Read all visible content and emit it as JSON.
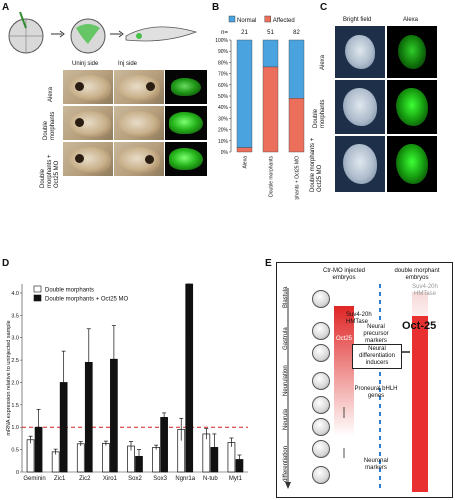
{
  "panels": {
    "a": {
      "letter": "A",
      "col_uninj": "Uninj side",
      "col_inj": "Inj side",
      "rows": [
        "Alexa",
        "Double morphants",
        "Double morphants + Oct25 MO"
      ]
    },
    "b": {
      "letter": "B"
    },
    "c": {
      "letter": "C",
      "col_bf": "Bright field",
      "col_alexa": "Alexa",
      "rows": [
        "Alexa",
        "Double morphants",
        "Double morphants + Oct25 MO"
      ]
    },
    "d": {
      "letter": "D"
    },
    "e": {
      "letter": "E",
      "col1": "Ctr-MO injected embryos",
      "col2": "double morphant embryos",
      "stages": [
        "Blastula",
        "Gastrula",
        "Neurulation",
        "Neurula",
        "differentiation"
      ],
      "suv_left": "Suv4-20h HMTase",
      "suv_right": "Suv4-20h HMTase",
      "oct25_small": "Oct25",
      "oct25_big": "Oct-25",
      "box_precursor": "Neural precursor markers",
      "box_diff": "Neural differentiation inducers",
      "proneural": "Proneural bHLH genes",
      "neuronal": "Neuronal markers"
    }
  },
  "chart_data": [
    {
      "type": "bar",
      "panel": "B",
      "categories": [
        "Alexa",
        "Double morphants",
        "Double morphants + Oct25 MO"
      ],
      "n_label": "n=",
      "n_values": [
        "21",
        "51",
        "82"
      ],
      "series": [
        {
          "name": "Normal",
          "values": [
            96,
            24,
            52
          ]
        },
        {
          "name": "Affected",
          "values": [
            4,
            76,
            48
          ]
        }
      ],
      "stacked": true,
      "ylim": [
        0,
        100
      ],
      "yticks": [
        "0%",
        "10%",
        "20%",
        "30%",
        "40%",
        "50%",
        "60%",
        "70%",
        "80%",
        "90%",
        "100%"
      ],
      "legend": "top",
      "colors": {
        "Normal": "#4aa3df",
        "Affected": "#ec6f5c"
      }
    },
    {
      "type": "bar",
      "panel": "D",
      "categories": [
        "Geminin",
        "Zic1",
        "Zic2",
        "Xiro1",
        "Sox2",
        "Sox3",
        "Ngnr1a",
        "N-tub",
        "Myt1"
      ],
      "series": [
        {
          "name": "Double morphants",
          "values": [
            0.72,
            0.45,
            0.63,
            0.64,
            0.58,
            0.55,
            0.95,
            0.85,
            0.66
          ],
          "errors": [
            0.08,
            0.06,
            0.05,
            0.05,
            0.1,
            0.05,
            0.25,
            0.12,
            0.1
          ]
        },
        {
          "name": "Double morphants + Oct25 MO",
          "values": [
            1.0,
            2.0,
            2.45,
            2.52,
            0.35,
            1.22,
            4.2,
            0.55,
            0.28
          ],
          "errors": [
            0.4,
            0.7,
            0.75,
            0.75,
            0.15,
            0.1,
            1.1,
            0.3,
            0.1
          ]
        }
      ],
      "ylabel": "mRNA expression relative to uninjected sample",
      "ylim": [
        0,
        4.2
      ],
      "yticks": [
        "0",
        "0.5",
        "1.0",
        "1.5",
        "2.0",
        "2.5",
        "3.0",
        "3.5",
        "4.0"
      ],
      "reference_line": 1.0,
      "legend": "top-left",
      "colors": {
        "Double morphants": "#ffffff",
        "Double morphants + Oct25 MO": "#111111",
        "reference": "#d62020"
      }
    }
  ]
}
